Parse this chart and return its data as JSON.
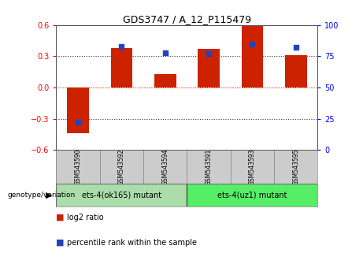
{
  "title": "GDS3747 / A_12_P115479",
  "samples": [
    "GSM543590",
    "GSM543592",
    "GSM543594",
    "GSM543591",
    "GSM543593",
    "GSM543595"
  ],
  "log2_ratio": [
    -0.44,
    0.38,
    0.13,
    0.37,
    0.6,
    0.31
  ],
  "percentile_rank": [
    22,
    83,
    78,
    77,
    85,
    82
  ],
  "ylim_left": [
    -0.6,
    0.6
  ],
  "ylim_right": [
    0,
    100
  ],
  "yticks_left": [
    -0.6,
    -0.3,
    0,
    0.3,
    0.6
  ],
  "yticks_right": [
    0,
    25,
    50,
    75,
    100
  ],
  "bar_color": "#cc2200",
  "dot_color": "#2244bb",
  "groups": [
    {
      "label": "ets-4(ok165) mutant",
      "indices": [
        0,
        1,
        2
      ],
      "color": "#aaddaa"
    },
    {
      "label": "ets-4(uz1) mutant",
      "indices": [
        3,
        4,
        5
      ],
      "color": "#55ee66"
    }
  ],
  "group_label": "genotype/variation",
  "legend_items": [
    {
      "color": "#cc2200",
      "label": "log2 ratio"
    },
    {
      "color": "#2244bb",
      "label": "percentile rank within the sample"
    }
  ],
  "hline0_color": "#cc2200",
  "hline_pm_color": "#333333",
  "background_color": "#ffffff",
  "sample_bg_color": "#cccccc",
  "bar_width": 0.5
}
